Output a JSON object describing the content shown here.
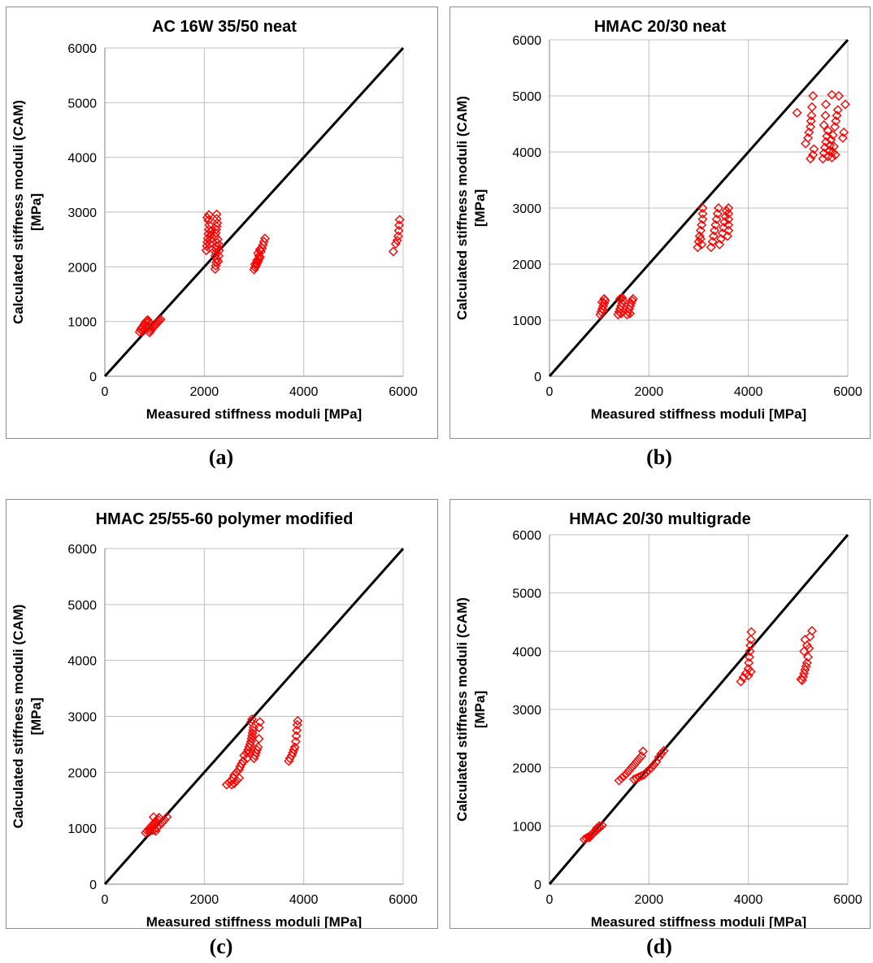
{
  "figure": {
    "captions": [
      "(a)",
      "(b)",
      "(c)",
      "(d)"
    ]
  },
  "colors": {
    "marker": "#ff0000",
    "line": "#000000",
    "grid": "#bfbfbf"
  },
  "chart_data": [
    {
      "type": "scatter",
      "title": "AC 16W 35/50 neat",
      "xlabel": "Measured stiffness moduli [MPa]",
      "ylabel": "Calculated stiffness moduli (CAM) [MPa]",
      "xlim": [
        0,
        6000
      ],
      "ylim": [
        0,
        6000
      ],
      "xticks": [
        0,
        2000,
        4000,
        6000
      ],
      "yticks": [
        0,
        1000,
        2000,
        3000,
        4000,
        5000,
        6000
      ],
      "grid": true,
      "marker": "open-diamond",
      "reference_line": [
        [
          0,
          0
        ],
        [
          6000,
          6000
        ]
      ],
      "points": [
        [
          700,
          810
        ],
        [
          720,
          850
        ],
        [
          740,
          880
        ],
        [
          760,
          900
        ],
        [
          780,
          930
        ],
        [
          800,
          960
        ],
        [
          820,
          990
        ],
        [
          840,
          1010
        ],
        [
          860,
          1030
        ],
        [
          880,
          1000
        ],
        [
          760,
          820
        ],
        [
          800,
          850
        ],
        [
          840,
          880
        ],
        [
          870,
          910
        ],
        [
          900,
          800
        ],
        [
          920,
          830
        ],
        [
          940,
          860
        ],
        [
          960,
          880
        ],
        [
          980,
          900
        ],
        [
          1000,
          920
        ],
        [
          1020,
          940
        ],
        [
          1040,
          960
        ],
        [
          1060,
          980
        ],
        [
          1080,
          1000
        ],
        [
          1100,
          1020
        ],
        [
          1120,
          1040
        ],
        [
          2040,
          2300
        ],
        [
          2050,
          2380
        ],
        [
          2060,
          2450
        ],
        [
          2070,
          2520
        ],
        [
          2080,
          2600
        ],
        [
          2090,
          2680
        ],
        [
          2100,
          2760
        ],
        [
          2080,
          2850
        ],
        [
          2090,
          2950
        ],
        [
          2060,
          2900
        ],
        [
          2100,
          2340
        ],
        [
          2110,
          2420
        ],
        [
          2120,
          2500
        ],
        [
          2130,
          2580
        ],
        [
          2140,
          2660
        ],
        [
          2220,
          1960
        ],
        [
          2230,
          2020
        ],
        [
          2240,
          2080
        ],
        [
          2250,
          2140
        ],
        [
          2220,
          2200
        ],
        [
          2230,
          2260
        ],
        [
          2240,
          2320
        ],
        [
          2250,
          2380
        ],
        [
          2260,
          2440
        ],
        [
          2270,
          2500
        ],
        [
          2220,
          2560
        ],
        [
          2230,
          2620
        ],
        [
          2240,
          2680
        ],
        [
          2250,
          2740
        ],
        [
          2260,
          2800
        ],
        [
          2250,
          2880
        ],
        [
          2250,
          2960
        ],
        [
          2280,
          2100
        ],
        [
          2290,
          2200
        ],
        [
          2300,
          2300
        ],
        [
          2300,
          2400
        ],
        [
          3000,
          1950
        ],
        [
          3020,
          1990
        ],
        [
          3040,
          2020
        ],
        [
          3060,
          2060
        ],
        [
          3080,
          2100
        ],
        [
          3100,
          2140
        ],
        [
          3120,
          2180
        ],
        [
          3020,
          2050
        ],
        [
          3060,
          2120
        ],
        [
          3100,
          2200
        ],
        [
          3140,
          2280
        ],
        [
          3160,
          2340
        ],
        [
          3180,
          2400
        ],
        [
          3200,
          2460
        ],
        [
          3220,
          2520
        ],
        [
          3080,
          2250
        ],
        [
          3120,
          2320
        ],
        [
          5800,
          2280
        ],
        [
          5850,
          2420
        ],
        [
          5880,
          2480
        ],
        [
          5900,
          2560
        ],
        [
          5910,
          2660
        ],
        [
          5920,
          2760
        ],
        [
          5930,
          2860
        ]
      ]
    },
    {
      "type": "scatter",
      "title": "HMAC 20/30 neat",
      "xlabel": "Measured stiffness moduli [MPa]",
      "ylabel": "Calculated stiffness moduli (CAM) [MPa]",
      "xlim": [
        0,
        6000
      ],
      "ylim": [
        0,
        6000
      ],
      "xticks": [
        0,
        2000,
        4000,
        6000
      ],
      "yticks": [
        0,
        1000,
        2000,
        3000,
        4000,
        5000,
        6000
      ],
      "grid": true,
      "marker": "open-diamond",
      "reference_line": [
        [
          0,
          0
        ],
        [
          6000,
          6000
        ]
      ],
      "points": [
        [
          1020,
          1100
        ],
        [
          1040,
          1150
        ],
        [
          1060,
          1200
        ],
        [
          1080,
          1250
        ],
        [
          1100,
          1300
        ],
        [
          1120,
          1350
        ],
        [
          1100,
          1380
        ],
        [
          1060,
          1320
        ],
        [
          1080,
          1180
        ],
        [
          1380,
          1100
        ],
        [
          1400,
          1150
        ],
        [
          1420,
          1200
        ],
        [
          1440,
          1250
        ],
        [
          1460,
          1300
        ],
        [
          1480,
          1350
        ],
        [
          1460,
          1400
        ],
        [
          1420,
          1380
        ],
        [
          1440,
          1120
        ],
        [
          1560,
          1100
        ],
        [
          1580,
          1150
        ],
        [
          1600,
          1200
        ],
        [
          1620,
          1250
        ],
        [
          1640,
          1300
        ],
        [
          1660,
          1350
        ],
        [
          1680,
          1380
        ],
        [
          1620,
          1120
        ],
        [
          2980,
          2300
        ],
        [
          3000,
          2400
        ],
        [
          3020,
          2500
        ],
        [
          3040,
          2600
        ],
        [
          3060,
          2700
        ],
        [
          3080,
          2800
        ],
        [
          3080,
          2900
        ],
        [
          3080,
          3000
        ],
        [
          3040,
          2450
        ],
        [
          3060,
          2350
        ],
        [
          3250,
          2300
        ],
        [
          3280,
          2400
        ],
        [
          3300,
          2500
        ],
        [
          3320,
          2600
        ],
        [
          3340,
          2700
        ],
        [
          3360,
          2800
        ],
        [
          3380,
          2900
        ],
        [
          3400,
          3000
        ],
        [
          3420,
          2350
        ],
        [
          3450,
          2450
        ],
        [
          3480,
          2550
        ],
        [
          3500,
          2650
        ],
        [
          3520,
          2750
        ],
        [
          3540,
          2850
        ],
        [
          3560,
          2950
        ],
        [
          3580,
          2500
        ],
        [
          3600,
          2600
        ],
        [
          3600,
          2700
        ],
        [
          3600,
          2800
        ],
        [
          3600,
          2900
        ],
        [
          3600,
          3000
        ],
        [
          4980,
          4700
        ],
        [
          5150,
          4150
        ],
        [
          5200,
          4250
        ],
        [
          5220,
          4350
        ],
        [
          5250,
          4450
        ],
        [
          5260,
          4550
        ],
        [
          5270,
          4650
        ],
        [
          5280,
          4800
        ],
        [
          5300,
          5000
        ],
        [
          5250,
          3880
        ],
        [
          5300,
          3950
        ],
        [
          5320,
          4050
        ],
        [
          5500,
          3880
        ],
        [
          5520,
          3980
        ],
        [
          5540,
          4080
        ],
        [
          5560,
          4180
        ],
        [
          5580,
          4280
        ],
        [
          5600,
          4380
        ],
        [
          5520,
          4480
        ],
        [
          5550,
          4650
        ],
        [
          5560,
          4850
        ],
        [
          5600,
          3920
        ],
        [
          5620,
          4020
        ],
        [
          5640,
          4120
        ],
        [
          5660,
          4220
        ],
        [
          5680,
          3900
        ],
        [
          5700,
          4000
        ],
        [
          5720,
          4100
        ],
        [
          5740,
          4450
        ],
        [
          5760,
          4550
        ],
        [
          5780,
          4650
        ],
        [
          5800,
          4750
        ],
        [
          5820,
          5000
        ],
        [
          5680,
          5020
        ],
        [
          5700,
          4300
        ],
        [
          5750,
          3950
        ],
        [
          5900,
          4250
        ],
        [
          5920,
          4350
        ],
        [
          5950,
          4850
        ]
      ]
    },
    {
      "type": "scatter",
      "title": "HMAC 25/55-60 polymer modified",
      "xlabel": "Measured stiffness moduli [MPa]",
      "ylabel": "Calculated stiffness moduli (CAM) [MPa]",
      "xlim": [
        0,
        6000
      ],
      "ylim": [
        0,
        6000
      ],
      "xticks": [
        0,
        2000,
        4000,
        6000
      ],
      "yticks": [
        0,
        1000,
        2000,
        3000,
        4000,
        5000,
        6000
      ],
      "grid": true,
      "marker": "open-diamond",
      "reference_line": [
        [
          0,
          0
        ],
        [
          6000,
          6000
        ]
      ],
      "points": [
        [
          820,
          920
        ],
        [
          850,
          950
        ],
        [
          880,
          980
        ],
        [
          910,
          1010
        ],
        [
          940,
          1040
        ],
        [
          970,
          1070
        ],
        [
          1000,
          1100
        ],
        [
          1030,
          1130
        ],
        [
          1060,
          1160
        ],
        [
          1090,
          1190
        ],
        [
          900,
          940
        ],
        [
          950,
          960
        ],
        [
          1000,
          980
        ],
        [
          1050,
          1010
        ],
        [
          1100,
          1050
        ],
        [
          1150,
          1100
        ],
        [
          1200,
          1150
        ],
        [
          1250,
          1200
        ],
        [
          980,
          1200
        ],
        [
          1020,
          950
        ],
        [
          2450,
          1780
        ],
        [
          2500,
          1820
        ],
        [
          2550,
          1850
        ],
        [
          2580,
          1900
        ],
        [
          2600,
          1950
        ],
        [
          2650,
          2000
        ],
        [
          2700,
          2050
        ],
        [
          2720,
          2100
        ],
        [
          2750,
          2150
        ],
        [
          2780,
          2200
        ],
        [
          2600,
          1800
        ],
        [
          2650,
          1850
        ],
        [
          2700,
          1900
        ],
        [
          2550,
          1780
        ],
        [
          2800,
          2300
        ],
        [
          2850,
          2350
        ],
        [
          2880,
          2400
        ],
        [
          2900,
          2450
        ],
        [
          2920,
          2500
        ],
        [
          2940,
          2550
        ],
        [
          2950,
          2600
        ],
        [
          2960,
          2650
        ],
        [
          2970,
          2700
        ],
        [
          2980,
          2750
        ],
        [
          2990,
          2800
        ],
        [
          2940,
          2900
        ],
        [
          2960,
          2950
        ],
        [
          3000,
          2250
        ],
        [
          3020,
          2300
        ],
        [
          3040,
          2350
        ],
        [
          3060,
          2400
        ],
        [
          3080,
          2450
        ],
        [
          3100,
          2600
        ],
        [
          3100,
          2800
        ],
        [
          3120,
          2900
        ],
        [
          2860,
          2250
        ],
        [
          2900,
          2350
        ],
        [
          3720,
          2250
        ],
        [
          3760,
          2300
        ],
        [
          3780,
          2350
        ],
        [
          3800,
          2400
        ],
        [
          3820,
          2450
        ],
        [
          3840,
          2550
        ],
        [
          3850,
          2650
        ],
        [
          3860,
          2750
        ],
        [
          3870,
          2850
        ],
        [
          3880,
          2920
        ],
        [
          3700,
          2200
        ]
      ]
    },
    {
      "type": "scatter",
      "title": "HMAC 20/30 multigrade",
      "xlabel": "Measured stiffness moduli [MPa]",
      "ylabel": "Calculated stiffness moduli (CAM) [MPa]",
      "xlim": [
        0,
        6000
      ],
      "ylim": [
        0,
        6000
      ],
      "xticks": [
        0,
        2000,
        4000,
        6000
      ],
      "yticks": [
        0,
        1000,
        2000,
        3000,
        4000,
        5000,
        6000
      ],
      "grid": true,
      "marker": "open-diamond",
      "reference_line": [
        [
          0,
          0
        ],
        [
          6000,
          6000
        ]
      ],
      "points": [
        [
          700,
          770
        ],
        [
          740,
          790
        ],
        [
          780,
          810
        ],
        [
          820,
          830
        ],
        [
          860,
          860
        ],
        [
          900,
          890
        ],
        [
          940,
          920
        ],
        [
          980,
          950
        ],
        [
          1020,
          980
        ],
        [
          1060,
          1010
        ],
        [
          800,
          800
        ],
        [
          850,
          850
        ],
        [
          900,
          900
        ],
        [
          950,
          960
        ],
        [
          1000,
          1000
        ],
        [
          1400,
          1780
        ],
        [
          1450,
          1820
        ],
        [
          1500,
          1860
        ],
        [
          1550,
          1900
        ],
        [
          1600,
          1950
        ],
        [
          1650,
          2000
        ],
        [
          1700,
          2050
        ],
        [
          1750,
          2100
        ],
        [
          1800,
          2150
        ],
        [
          1850,
          2200
        ],
        [
          1880,
          2280
        ],
        [
          1700,
          1800
        ],
        [
          1750,
          1820
        ],
        [
          1800,
          1840
        ],
        [
          1850,
          1860
        ],
        [
          1900,
          1880
        ],
        [
          1950,
          1920
        ],
        [
          2000,
          1960
        ],
        [
          2050,
          2000
        ],
        [
          2100,
          2050
        ],
        [
          2150,
          2100
        ],
        [
          2200,
          2180
        ],
        [
          2250,
          2240
        ],
        [
          2300,
          2290
        ],
        [
          3850,
          3480
        ],
        [
          3900,
          3550
        ],
        [
          3950,
          3620
        ],
        [
          4000,
          3700
        ],
        [
          4010,
          3800
        ],
        [
          4020,
          3900
        ],
        [
          4030,
          4000
        ],
        [
          4040,
          4100
        ],
        [
          4050,
          4200
        ],
        [
          4060,
          4330
        ],
        [
          4000,
          3580
        ],
        [
          4050,
          3650
        ],
        [
          5080,
          3500
        ],
        [
          5100,
          3560
        ],
        [
          5120,
          3620
        ],
        [
          5140,
          3680
        ],
        [
          5160,
          3740
        ],
        [
          5180,
          3800
        ],
        [
          5200,
          3900
        ],
        [
          5120,
          4000
        ],
        [
          5140,
          4200
        ],
        [
          5180,
          4100
        ],
        [
          5220,
          4050
        ],
        [
          5240,
          4250
        ],
        [
          5280,
          4350
        ],
        [
          5060,
          3520
        ]
      ]
    }
  ]
}
